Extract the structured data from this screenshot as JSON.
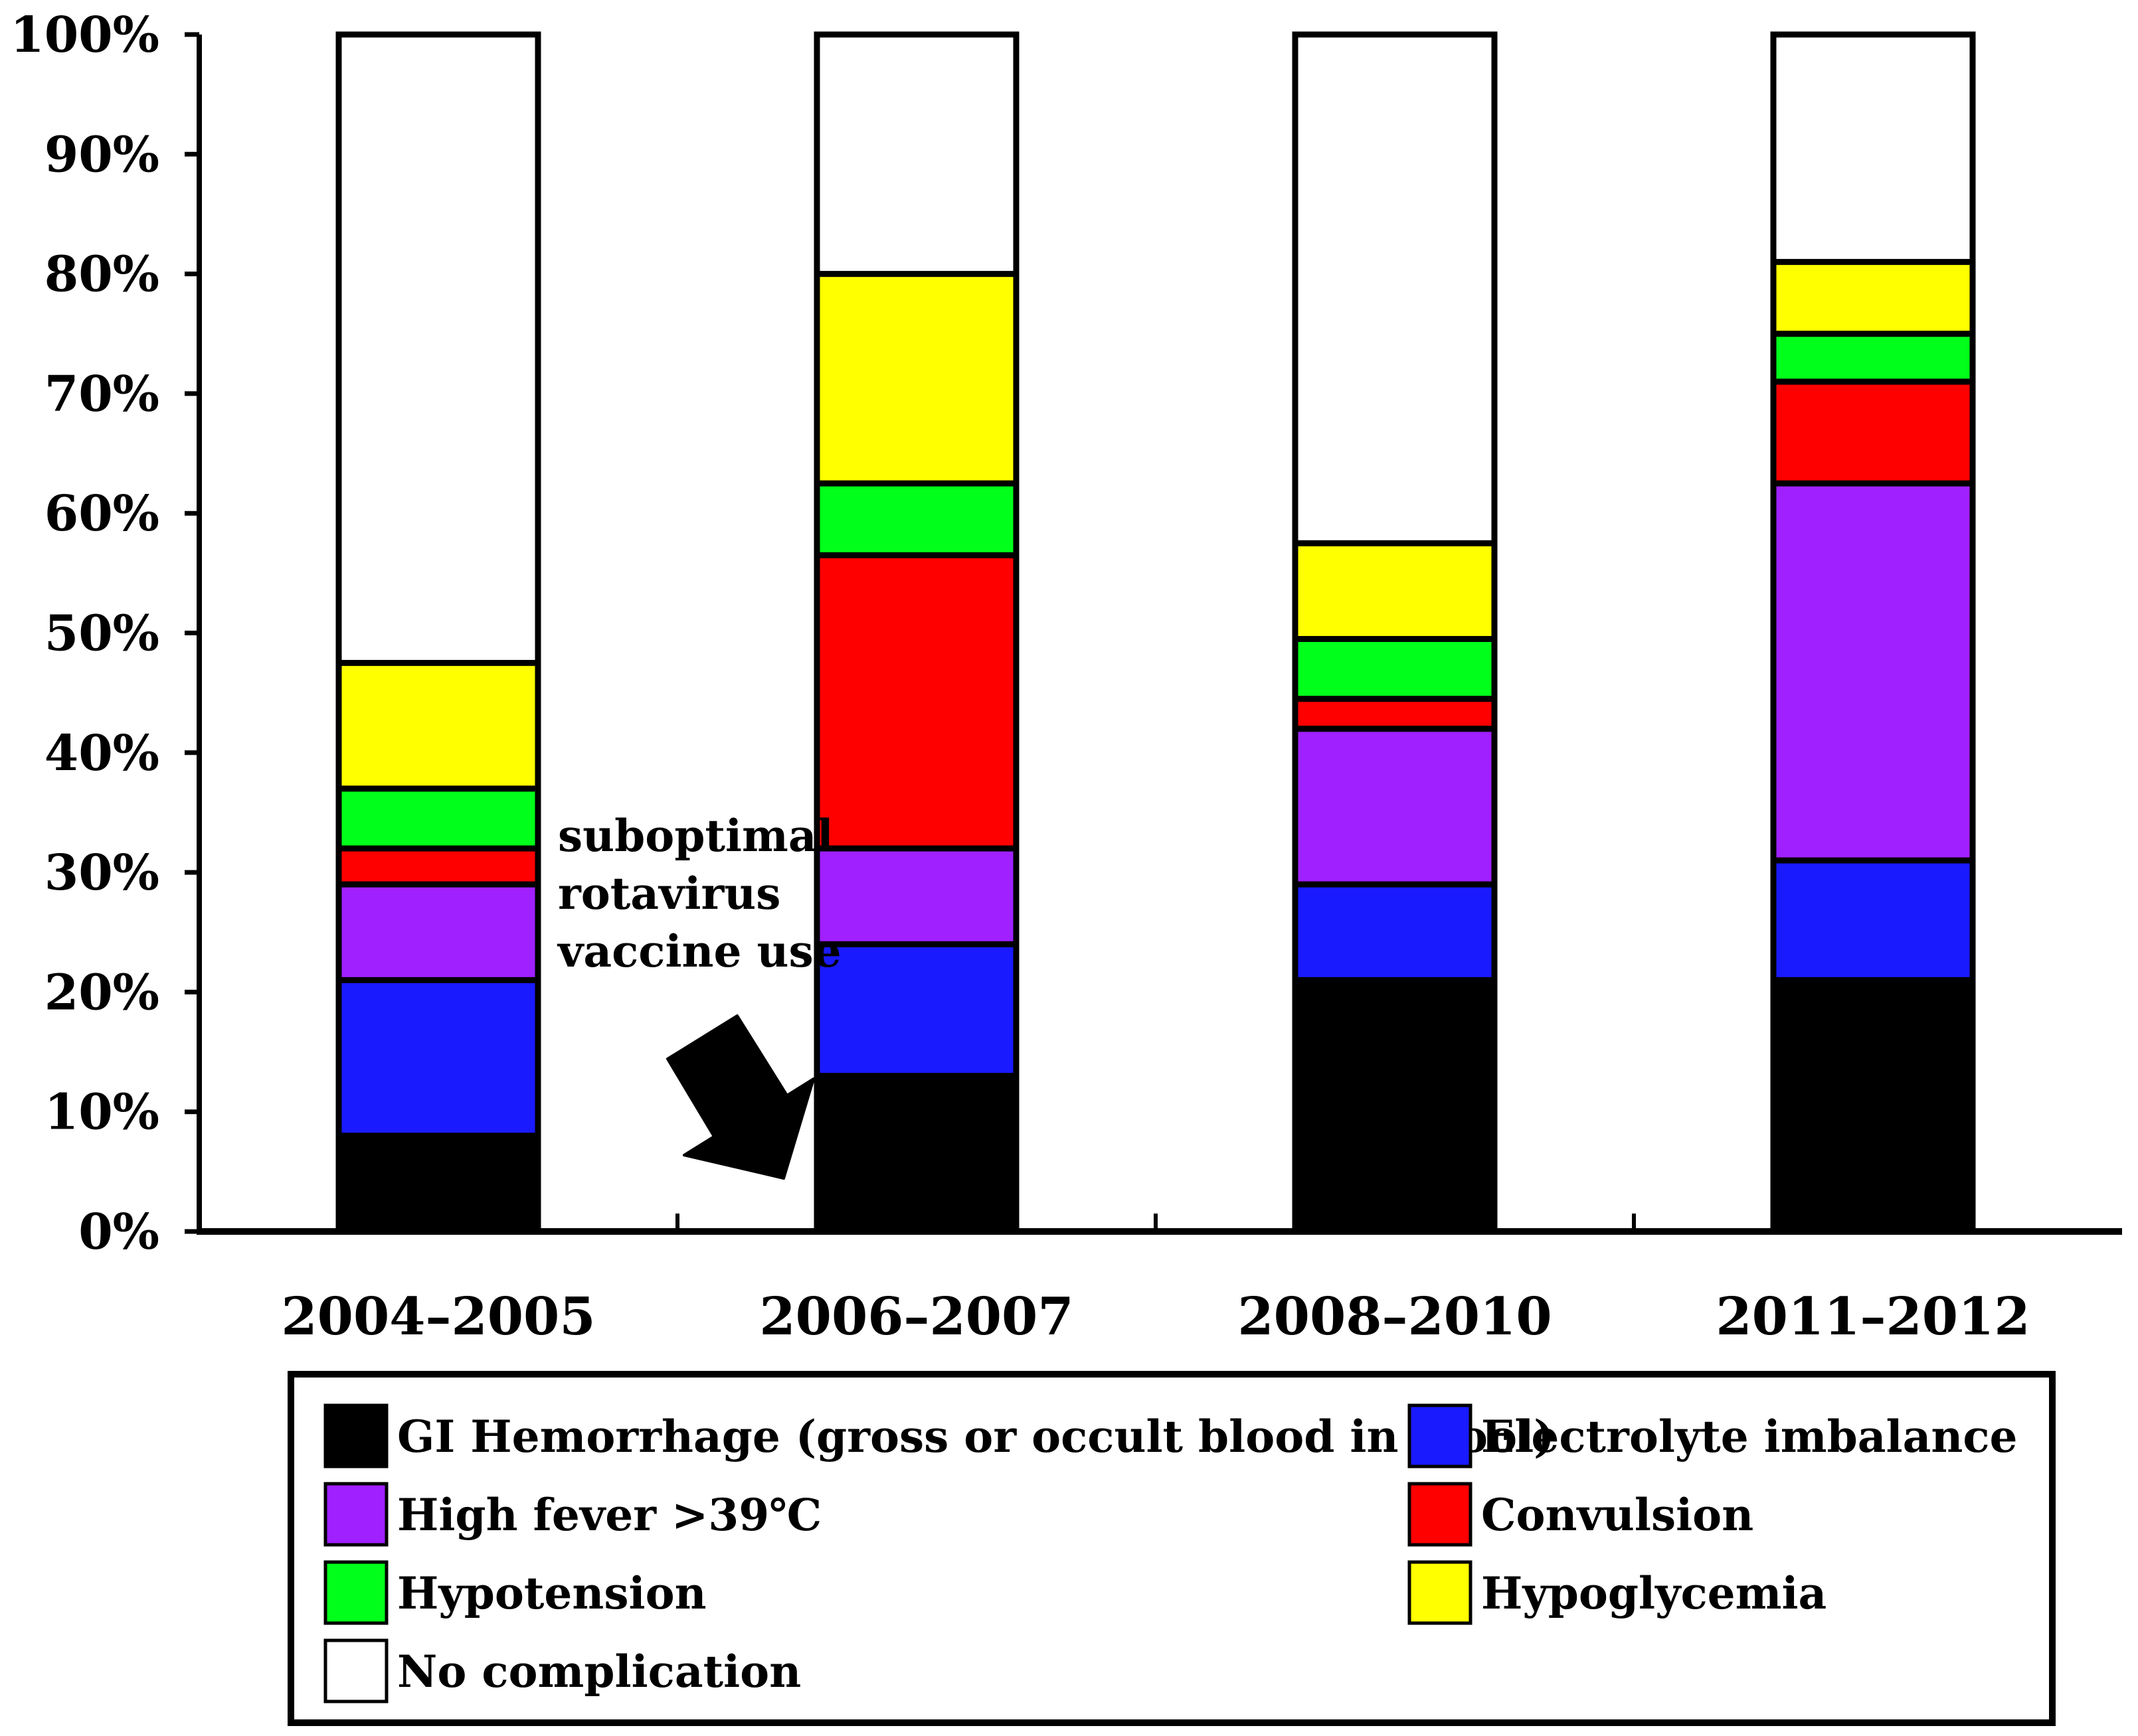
{
  "chart_data": {
    "type": "bar",
    "stacked": true,
    "categories": [
      "2004–2005",
      "2006–2007",
      "2008–2010",
      "2011–2012"
    ],
    "ylim": [
      0,
      100
    ],
    "ytick_labels": [
      "0%",
      "10%",
      "20%",
      "30%",
      "40%",
      "50%",
      "60%",
      "70%",
      "80%",
      "90%",
      "100%"
    ],
    "series": [
      {
        "name": "GI Hemorrhage (gross or occult blood in stool)",
        "color": "#000000",
        "values": [
          8,
          13,
          21,
          21
        ]
      },
      {
        "name": "Electrolyte imbalance",
        "color": "#1a1aff",
        "values": [
          13,
          11,
          8,
          10
        ]
      },
      {
        "name": "High fever >39℃",
        "color": "#a020ff",
        "values": [
          8,
          8,
          13,
          31.5
        ]
      },
      {
        "name": "Convulsion",
        "color": "#ff0000",
        "values": [
          3,
          24.5,
          2.5,
          8.5
        ]
      },
      {
        "name": "Hypotension",
        "color": "#00ff1a",
        "values": [
          5,
          6,
          5,
          4
        ]
      },
      {
        "name": "Hypoglycemia",
        "color": "#ffff00",
        "values": [
          10.5,
          17.5,
          8,
          6
        ]
      },
      {
        "name": "No complication",
        "color": "#ffffff",
        "values": [
          52.5,
          20,
          42.5,
          19
        ]
      }
    ],
    "legend_order": [
      0,
      1,
      2,
      3,
      4,
      5,
      6
    ],
    "legend_position": "bottom",
    "annotation": {
      "lines": [
        "suboptimal",
        "rotavirus",
        "vaccine use"
      ],
      "points_to": "2006–2007"
    },
    "xlabel": "",
    "ylabel": "",
    "title": ""
  }
}
